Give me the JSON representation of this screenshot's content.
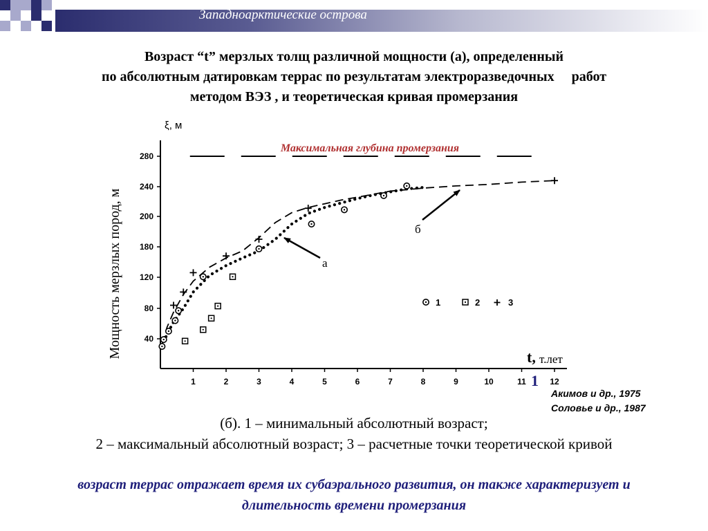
{
  "header": {
    "title": "Западноарктические острова"
  },
  "main_title": {
    "line1": "Возраст “t” мерзлых толщ различной мощности (а), определенный",
    "line2": "по абсолютным датировкам террас по результатам электроразведочных     работ",
    "line3": "методом ВЭЗ , и теоретическая кривая промерзания"
  },
  "chart_data": {
    "type": "scatter",
    "y_unit_label": "ξ, м",
    "ylabel": "Мощность мерзлых пород, м",
    "x_label_t": "t,",
    "x_label_unit": "т.лет",
    "x_ticks": [
      "1",
      "2",
      "3",
      "4",
      "5",
      "6",
      "7",
      "8",
      "9",
      "10",
      "11",
      "12"
    ],
    "y_ticks": [
      "40",
      "80",
      "120",
      "180",
      "200",
      "240",
      "280"
    ],
    "max_depth_label": "Максимальная глубина промерзания",
    "max_depth_value": 280,
    "curve_a_label": "а",
    "curve_b_label": "б",
    "figure_number": "1",
    "legend": [
      "1",
      "2",
      "3"
    ],
    "series": [
      {
        "name": "1",
        "marker": "circle-dot",
        "points": [
          [
            0.05,
            30
          ],
          [
            0.1,
            39
          ],
          [
            0.25,
            50
          ],
          [
            0.45,
            64
          ],
          [
            0.55,
            77
          ],
          [
            1.3,
            121
          ],
          [
            3.0,
            176
          ],
          [
            4.6,
            195
          ],
          [
            5.6,
            209
          ],
          [
            6.8,
            228
          ],
          [
            7.5,
            241
          ]
        ]
      },
      {
        "name": "2",
        "marker": "square-dot",
        "points": [
          [
            0.75,
            37
          ],
          [
            1.3,
            52
          ],
          [
            1.55,
            67
          ],
          [
            1.75,
            83
          ],
          [
            2.2,
            121
          ]
        ]
      },
      {
        "name": "3",
        "marker": "plus",
        "points": [
          [
            0.4,
            84
          ],
          [
            0.7,
            101
          ],
          [
            1.0,
            129
          ],
          [
            2.0,
            162
          ],
          [
            3.0,
            185
          ],
          [
            4.5,
            211
          ],
          [
            12.0,
            248
          ]
        ]
      }
    ],
    "curve_a": {
      "style": "dotted",
      "x": [
        0.05,
        0.2,
        0.4,
        0.7,
        1,
        1.5,
        2,
        2.5,
        3,
        3.5,
        4,
        4.5,
        5,
        5.5,
        6,
        6.5,
        7,
        7.5,
        8
      ],
      "y": [
        30,
        46,
        62,
        80,
        101,
        124,
        143,
        158,
        172,
        185,
        195,
        204,
        212,
        218,
        224,
        229,
        233,
        237,
        239
      ]
    },
    "curve_b": {
      "style": "dashed",
      "x": [
        0.05,
        0.2,
        0.4,
        0.7,
        1,
        1.5,
        2,
        2.5,
        3,
        3.5,
        4,
        4.5,
        5,
        5.5,
        6,
        6.5,
        7,
        7.5,
        8,
        9,
        10,
        11,
        12
      ],
      "y": [
        33,
        55,
        75,
        98,
        115,
        140,
        158,
        172,
        186,
        196,
        205,
        212,
        217,
        222,
        226,
        230,
        234,
        236,
        238,
        241,
        243,
        246,
        248
      ]
    },
    "xlim": [
      0,
      12.5
    ],
    "ylim": [
      0,
      300
    ]
  },
  "sources": {
    "line1": "Акимов и др., 1975",
    "line2": "Соловье и др., 1987"
  },
  "caption": {
    "line1": "(б). 1 – минимальный абсолютный возраст;",
    "line2": "2 – максимальный абсолютный возраст; 3 – расчетные точки теоретической кривой"
  },
  "note": "возраст террас отражает время их субаэрального развития, он также характеризует и длительность времени промерзания",
  "colors": {
    "accent": "#2b2d6e",
    "note": "#1e1e7a",
    "max_depth_label": "#b03030",
    "legend_square": "#a8a9cc"
  }
}
